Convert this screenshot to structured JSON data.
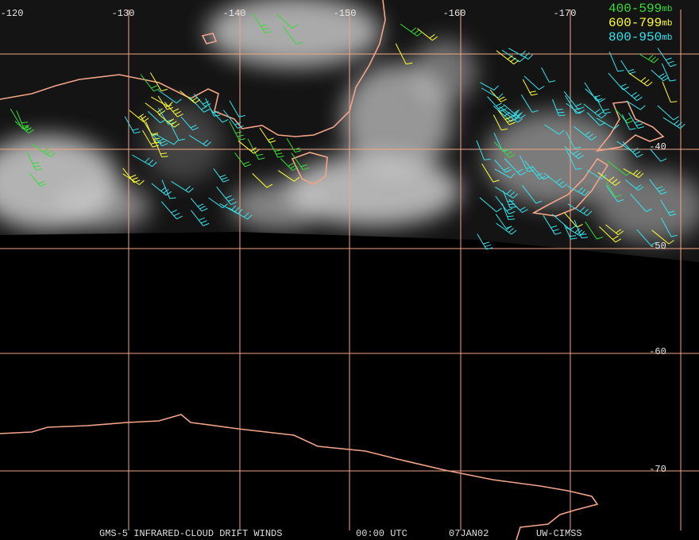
{
  "map": {
    "longitude_labels": [
      "-120",
      "-130",
      "-140",
      "-150",
      "-160",
      "-170"
    ],
    "latitude_labels": [
      "-40",
      "-50",
      "-60",
      "-70"
    ],
    "legend": [
      {
        "range": "400-599",
        "unit": "mb",
        "color": "#33dd33"
      },
      {
        "range": "600-799",
        "unit": "mb",
        "color": "#ffff33"
      },
      {
        "range": "800-950",
        "unit": "mb",
        "color": "#33e6ee"
      }
    ],
    "footer": [
      "GMS-5 INFRARED-CLOUD DRIFT WINDS",
      "00:00 UTC",
      "07JAN02",
      "UW-CIMSS"
    ]
  }
}
